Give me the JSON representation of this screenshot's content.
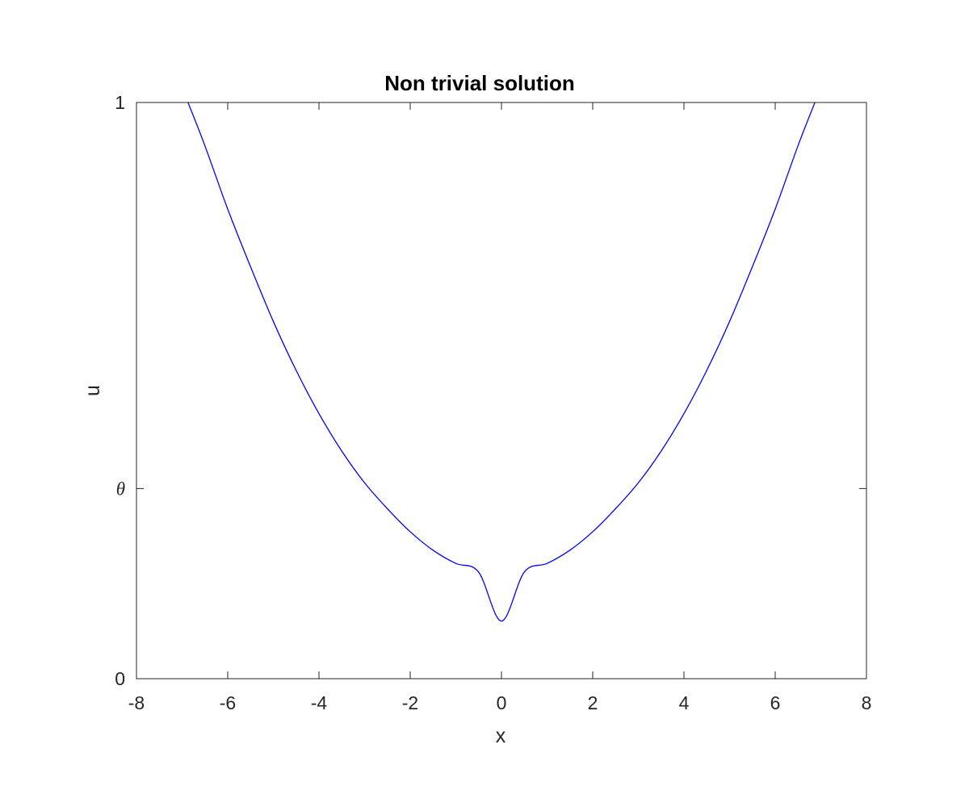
{
  "chart_data": {
    "type": "line",
    "title": "Non trivial solution",
    "xlabel": "x",
    "ylabel": "u",
    "xlim": [
      -8,
      8
    ],
    "ylim": [
      0,
      1
    ],
    "x_ticks": [
      -8,
      -6,
      -4,
      -2,
      0,
      2,
      4,
      6,
      8
    ],
    "x_tick_labels": [
      "-8",
      "-6",
      "-4",
      "-2",
      "0",
      "2",
      "4",
      "6",
      "8"
    ],
    "y_ticks": [
      0,
      0.33,
      1
    ],
    "y_tick_labels": [
      "0",
      "θ",
      "1"
    ],
    "grid": false,
    "series": [
      {
        "color": "#0000ff",
        "x": [
          -6.87,
          -6.5,
          -6.0,
          -5.5,
          -5.0,
          -4.5,
          -4.0,
          -3.5,
          -3.0,
          -2.5,
          -2.0,
          -1.5,
          -1.0,
          -0.5,
          0.0,
          0.5,
          1.0,
          1.5,
          2.0,
          2.5,
          3.0,
          3.5,
          4.0,
          4.5,
          5.0,
          5.5,
          6.0,
          6.5,
          6.87
        ],
        "y": [
          1.0,
          0.925,
          0.815,
          0.715,
          0.62,
          0.535,
          0.46,
          0.395,
          0.34,
          0.295,
          0.255,
          0.223,
          0.2,
          0.185,
          0.1,
          0.185,
          0.2,
          0.223,
          0.255,
          0.295,
          0.34,
          0.395,
          0.46,
          0.535,
          0.62,
          0.715,
          0.815,
          0.925,
          1.0
        ]
      }
    ]
  }
}
